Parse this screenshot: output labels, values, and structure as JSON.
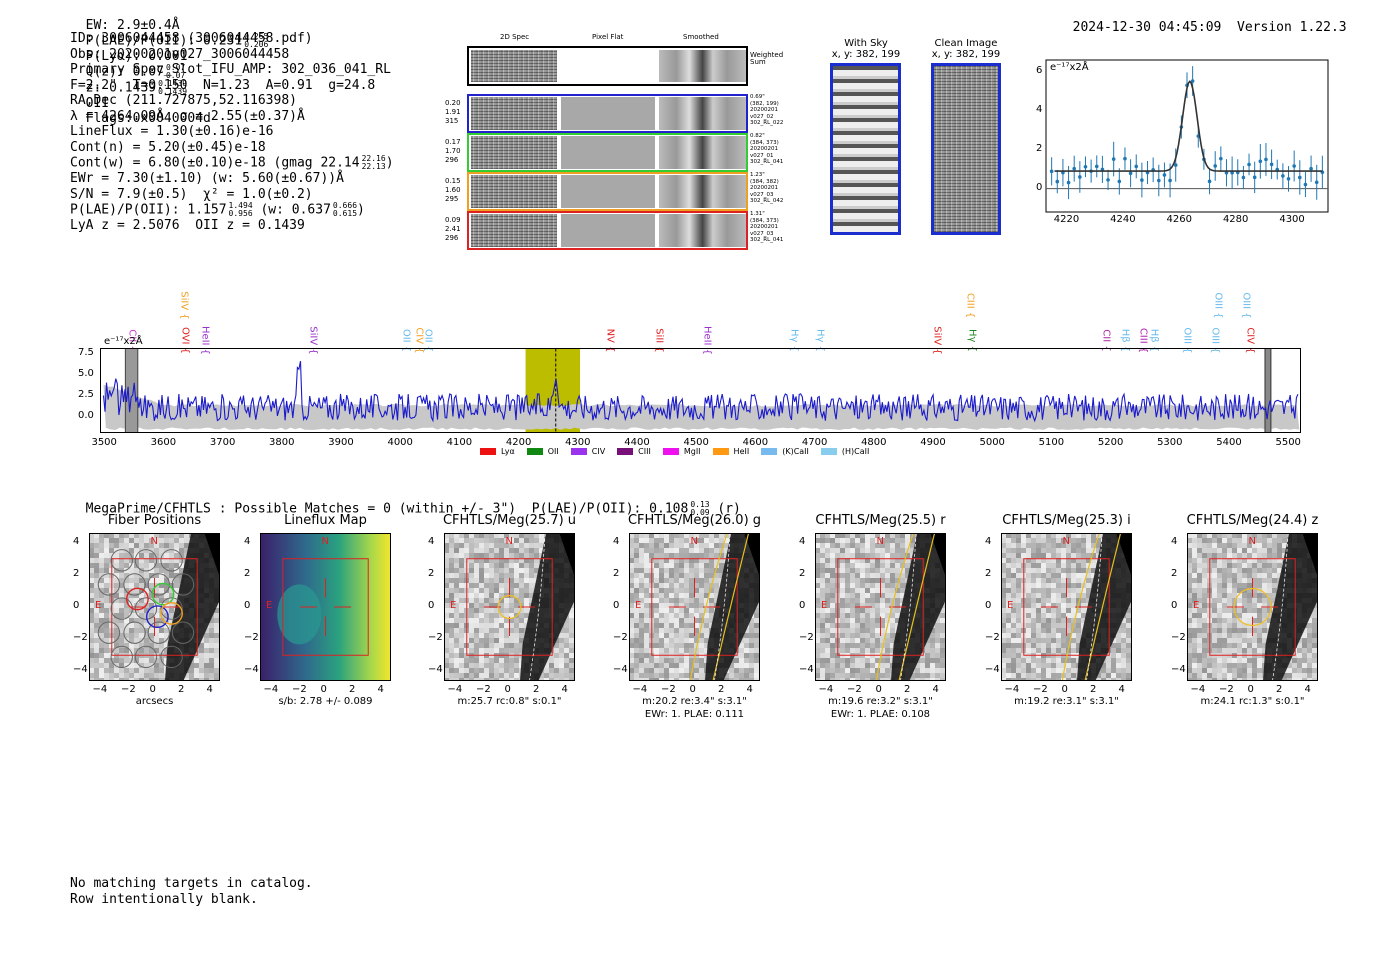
{
  "header": {
    "ew": "EW: 2.9±0.4Å",
    "plae_label": "P(LAE)/P(OII): 0.231",
    "plae_hi": "0.265",
    "plae_lo": "0.206",
    "plya": "P(Lyα): 0.001",
    "qz_label": "Q(z): 0.07",
    "qz_hi": "0.07",
    "qz_lo": "0.07",
    "z_label": "z: 0.1439",
    "z_hi": "0.1439",
    "z_lo": "0.1439",
    "z_line": "OII",
    "flags": "Flags:0x0040004d",
    "timestamp": "2024-12-30 04:45:09",
    "version": "Version 1.22.3"
  },
  "info": {
    "l1": "ID: 3006044458 (3006044458.pdf)",
    "l2": "Obs: 20200201v027_3006044458",
    "l3": "Primary Spec_Slot_IFU_AMP: 302_036_041_RL",
    "l4": "F=2.2\"  T=0.150  N=1.23  A=0.91  g=24.8",
    "l5": "RA,Dec (211.727875,52.116398)",
    "l6": "λ = 4264.09Å  σ = 2.55(±0.37)Å",
    "l7": "LineFlux = 1.30(±0.16)e-16",
    "l8": "Cont(n) = 5.20(±0.45)e-18",
    "l9": "Cont(w) = 6.80(±0.10)e-18 (gmag 22.14",
    "l9_hi": "22.16",
    "l9_lo": "22.13",
    "l9_end": ")",
    "l10": "EWr = 7.30(±1.10) (w: 5.60(±0.67))Å",
    "l11": "S/N = 7.9(±0.5)  χ² = 1.0(±0.2)",
    "l12": "P(LAE)/P(OII): 1.157",
    "l12_hi": "1.494",
    "l12_lo": "0.956",
    "l12_mid": "(w: 0.637",
    "l12_hi2": "0.666",
    "l12_lo2": "0.615",
    "l12_end": ")",
    "l13": "LyA z = 2.5076  OII z = 0.1439"
  },
  "cutouts": {
    "col_2d": "2D Spec",
    "col_flat": "Pixel Flat",
    "col_smooth": "Smoothed",
    "weighted": "Weighted Sum",
    "rows": [
      {
        "w1": "0.20",
        "w2": "1.91",
        "w3": "315",
        "meta": [
          "0.69\"",
          "(382, 199)",
          "20200201",
          "v027_02",
          "302_RL_022"
        ],
        "color": "#2222cc"
      },
      {
        "w1": "0.17",
        "w2": "1.70",
        "w3": "296",
        "meta": [
          "0.82\"",
          "(384, 373)",
          "20200201",
          "v027_01",
          "302_RL_041"
        ],
        "color": "#33cc33"
      },
      {
        "w1": "0.15",
        "w2": "1.60",
        "w3": "295",
        "meta": [
          "1.23\"",
          "(384, 382)",
          "20200201",
          "v027_03",
          "302_RL_042"
        ],
        "color": "#f0a020"
      },
      {
        "w1": "0.09",
        "w2": "2.41",
        "w3": "296",
        "meta": [
          "1.31\"",
          "(384, 373)",
          "20200201",
          "v027_03",
          "302_RL_041"
        ],
        "color": "#dd2222"
      }
    ]
  },
  "sky": {
    "with_sky_title": "With Sky",
    "with_sky_coord": "x, y: 382, 199",
    "clean_title": "Clean Image",
    "clean_coord": "x, y: 382, 199"
  },
  "line_fit": {
    "ylabel": "e⁻¹⁷x2Å",
    "yticks": [
      "6",
      "4",
      "2",
      "0"
    ],
    "xticks": [
      "4220",
      "4240",
      "4260",
      "4280",
      "4300"
    ]
  },
  "spectrum": {
    "ylabel": "e⁻¹⁷x2Å",
    "yticks": [
      "7.5",
      "5.0",
      "2.5",
      "0.0"
    ],
    "xticks": [
      "3500",
      "3600",
      "3700",
      "3800",
      "3900",
      "4000",
      "4100",
      "4200",
      "4300",
      "4400",
      "4500",
      "4600",
      "4700",
      "4800",
      "4900",
      "5000",
      "5100",
      "5200",
      "5300",
      "5400",
      "5500"
    ],
    "lines": [
      {
        "label": "CII",
        "color": "#cc33cc",
        "row": "low"
      },
      {
        "label": "OVI",
        "color": "#dd2222",
        "row": "low"
      },
      {
        "label": "SiIV",
        "color": "#f0a020",
        "row": "high"
      },
      {
        "label": "HeII",
        "color": "#9933cc",
        "row": "low"
      },
      {
        "label": "SiIV",
        "color": "#9933cc",
        "row": "low"
      },
      {
        "label": "OII",
        "color": "#66bbee",
        "row": "low"
      },
      {
        "label": "CIV",
        "color": "#f0a020",
        "row": "low"
      },
      {
        "label": "OII",
        "color": "#66bbee",
        "row": "low"
      },
      {
        "label": "NV",
        "color": "#dd2222",
        "row": "low"
      },
      {
        "label": "SiII",
        "color": "#dd2222",
        "row": "low"
      },
      {
        "label": "HeII",
        "color": "#9933cc",
        "row": "low"
      },
      {
        "label": "Hγ",
        "color": "#66bbee",
        "row": "low"
      },
      {
        "label": "Hγ",
        "color": "#66bbee",
        "row": "low"
      },
      {
        "label": "SiIV",
        "color": "#dd2222",
        "row": "low"
      },
      {
        "label": "CIII",
        "color": "#f0a020",
        "row": "high"
      },
      {
        "label": "Hγ",
        "color": "#228822",
        "row": "low"
      },
      {
        "label": "CII",
        "color": "#aa22aa",
        "row": "low"
      },
      {
        "label": "Hβ",
        "color": "#66bbee",
        "row": "low"
      },
      {
        "label": "CIII",
        "color": "#aa22aa",
        "row": "low"
      },
      {
        "label": "Hβ",
        "color": "#66bbee",
        "row": "low"
      },
      {
        "label": "OIII",
        "color": "#66bbee",
        "row": "low"
      },
      {
        "label": "OIII",
        "color": "#66bbee",
        "row": "low"
      },
      {
        "label": "OIII",
        "color": "#66bbee",
        "row": "high"
      },
      {
        "label": "OIII",
        "color": "#66bbee",
        "row": "high"
      },
      {
        "label": "CIV",
        "color": "#dd2222",
        "row": "low"
      }
    ],
    "legend": [
      {
        "label": "Lyα",
        "color": "#ee1111"
      },
      {
        "label": "OII",
        "color": "#118811"
      },
      {
        "label": "CIV",
        "color": "#9933ee"
      },
      {
        "label": "CIII",
        "color": "#771177"
      },
      {
        "label": "MgII",
        "color": "#ee11ee"
      },
      {
        "label": "HeII",
        "color": "#ff9911"
      },
      {
        "label": "(K)CaII",
        "color": "#77bbee"
      },
      {
        "label": "(H)CaII",
        "color": "#88ccee"
      }
    ]
  },
  "catalog": {
    "line_a": "MegaPrime/CFHTLS : Possible Matches = 0 (within +/- 3\")  P(LAE)/P(OII): 0.108",
    "hi": "0.13",
    "lo": "0.09",
    "line_b": "(r)"
  },
  "panels": [
    {
      "title": "Fiber Positions",
      "caption1": "arcsecs",
      "caption2": ""
    },
    {
      "title": "Lineflux Map",
      "caption1": "s/b: 2.78 +/- 0.089",
      "caption2": ""
    },
    {
      "title": "CFHTLS/Meg(25.7) u",
      "caption1": "m:25.7 rc:0.8\"  s:0.1\"",
      "caption2": ""
    },
    {
      "title": "CFHTLS/Meg(26.0) g",
      "caption1": "m:20.2  re:3.4\"  s:3.1\"",
      "caption2": "EWr: 1. PLAE: 0.111"
    },
    {
      "title": "CFHTLS/Meg(25.5) r",
      "caption1": "m:19.6  re:3.2\"  s:3.1\"",
      "caption2": "EWr: 1. PLAE: 0.108"
    },
    {
      "title": "CFHTLS/Meg(25.3) i",
      "caption1": "m:19.2  re:3.1\"  s:3.1\"",
      "caption2": ""
    },
    {
      "title": "CFHTLS/Meg(24.4) z",
      "caption1": "m:24.1 rc:1.3\"  s:0.1\"",
      "caption2": ""
    }
  ],
  "panel_axes": {
    "yticks": [
      "4",
      "2",
      "0",
      "−2",
      "−4"
    ],
    "xticks": [
      "−4",
      "−2",
      "0",
      "2",
      "4"
    ],
    "north": "N",
    "east": "E"
  },
  "footer": {
    "l1": "No matching targets in catalog.",
    "l2": "Row intentionally blank."
  }
}
